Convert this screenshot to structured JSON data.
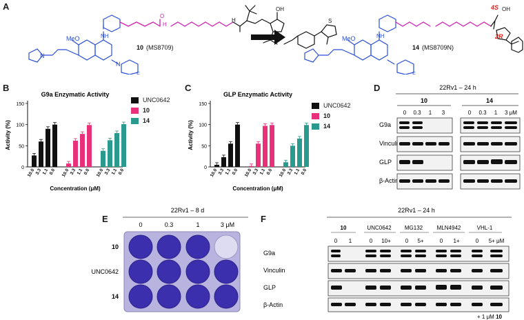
{
  "panels": {
    "A": {
      "label": "A",
      "left_compound": {
        "number": "10",
        "code": "(MS8709)"
      },
      "right_compound": {
        "number": "14",
        "code": "(MS8709N)"
      },
      "atoms": {
        "meo": "MeO",
        "n": "N",
        "nh": "NH",
        "hn": "HN",
        "o": "O",
        "oh": "OH",
        "s": "S",
        "h": "H",
        "f": "F"
      },
      "stereo": {
        "a": "4S",
        "b": "2R"
      }
    },
    "B": {
      "label": "B",
      "chart_data": {
        "type": "bar",
        "title": "G9a Enzymatic Activity",
        "ylabel": "Activity (%)",
        "xlabel": "Concentration (μM)",
        "ylim": [
          0,
          150
        ],
        "yticks": [
          "0",
          "50",
          "100",
          "150"
        ],
        "categories": [
          "10.0",
          "3.3",
          "1.1",
          "0.0"
        ],
        "series": [
          {
            "name": "UNC0642",
            "color": "#111111",
            "values": [
              27,
              60,
              90,
              100
            ]
          },
          {
            "name": "10",
            "color": "#e8317a",
            "values": [
              8,
              62,
              78,
              99
            ]
          },
          {
            "name": "14",
            "color": "#2a9a8e",
            "values": [
              38,
              63,
              80,
              101
            ]
          }
        ]
      }
    },
    "C": {
      "label": "C",
      "chart_data": {
        "type": "bar",
        "title": "GLP Enzymatic Activity",
        "ylabel": "Activity (%)",
        "xlabel": "Concentration (μM)",
        "ylim": [
          0,
          150
        ],
        "yticks": [
          "0",
          "50",
          "100",
          "150"
        ],
        "categories": [
          "10.0",
          "3.3",
          "1.1",
          "0.0"
        ],
        "series": [
          {
            "name": "UNC0642",
            "color": "#111111",
            "values": [
              5,
              23,
              55,
              100
            ]
          },
          {
            "name": "10",
            "color": "#e8317a",
            "values": [
              2,
              55,
              97,
              99
            ]
          },
          {
            "name": "14",
            "color": "#2a9a8e",
            "values": [
              11,
              50,
              67,
              99
            ]
          }
        ]
      }
    },
    "D": {
      "label": "D",
      "header": "22Rv1 – 24 h",
      "groups": [
        {
          "name": "10",
          "doses": [
            "0",
            "0.3",
            "1",
            "3"
          ]
        },
        {
          "name": "14",
          "doses": [
            "0",
            "0.3",
            "1",
            "3 μM"
          ]
        }
      ],
      "rows": [
        "G9a",
        "Vinculin",
        "GLP",
        "β-Actin"
      ]
    },
    "E": {
      "label": "E",
      "header": "22Rv1 – 8 d",
      "doses": [
        "0",
        "0.3",
        "1",
        "3 μM"
      ],
      "rows": [
        "10",
        "UNC0642",
        "14"
      ]
    },
    "F": {
      "label": "F",
      "header": "22Rv1 – 24 h",
      "groups": [
        {
          "name": "10",
          "doses": [
            "0",
            "1"
          ]
        },
        {
          "name": "UNC0642",
          "doses": [
            "0",
            "10+"
          ]
        },
        {
          "name": "MG132",
          "doses": [
            "0",
            "5+"
          ]
        },
        {
          "name": "MLN4942",
          "doses": [
            "0",
            "1+"
          ]
        },
        {
          "name": "VHL-1",
          "doses": [
            "0",
            "5+ μM"
          ]
        }
      ],
      "rows": [
        "G9a",
        "Vinculin",
        "GLP",
        "β-Actin"
      ],
      "footnote_pre": "+ 1 μM ",
      "footnote_bold": "10"
    }
  },
  "colors": {
    "blue": "#2a4fd6",
    "magenta": "#d21fb0",
    "red": "#e0201a",
    "plate": "#b9b4df",
    "well": "#3b2fae"
  }
}
